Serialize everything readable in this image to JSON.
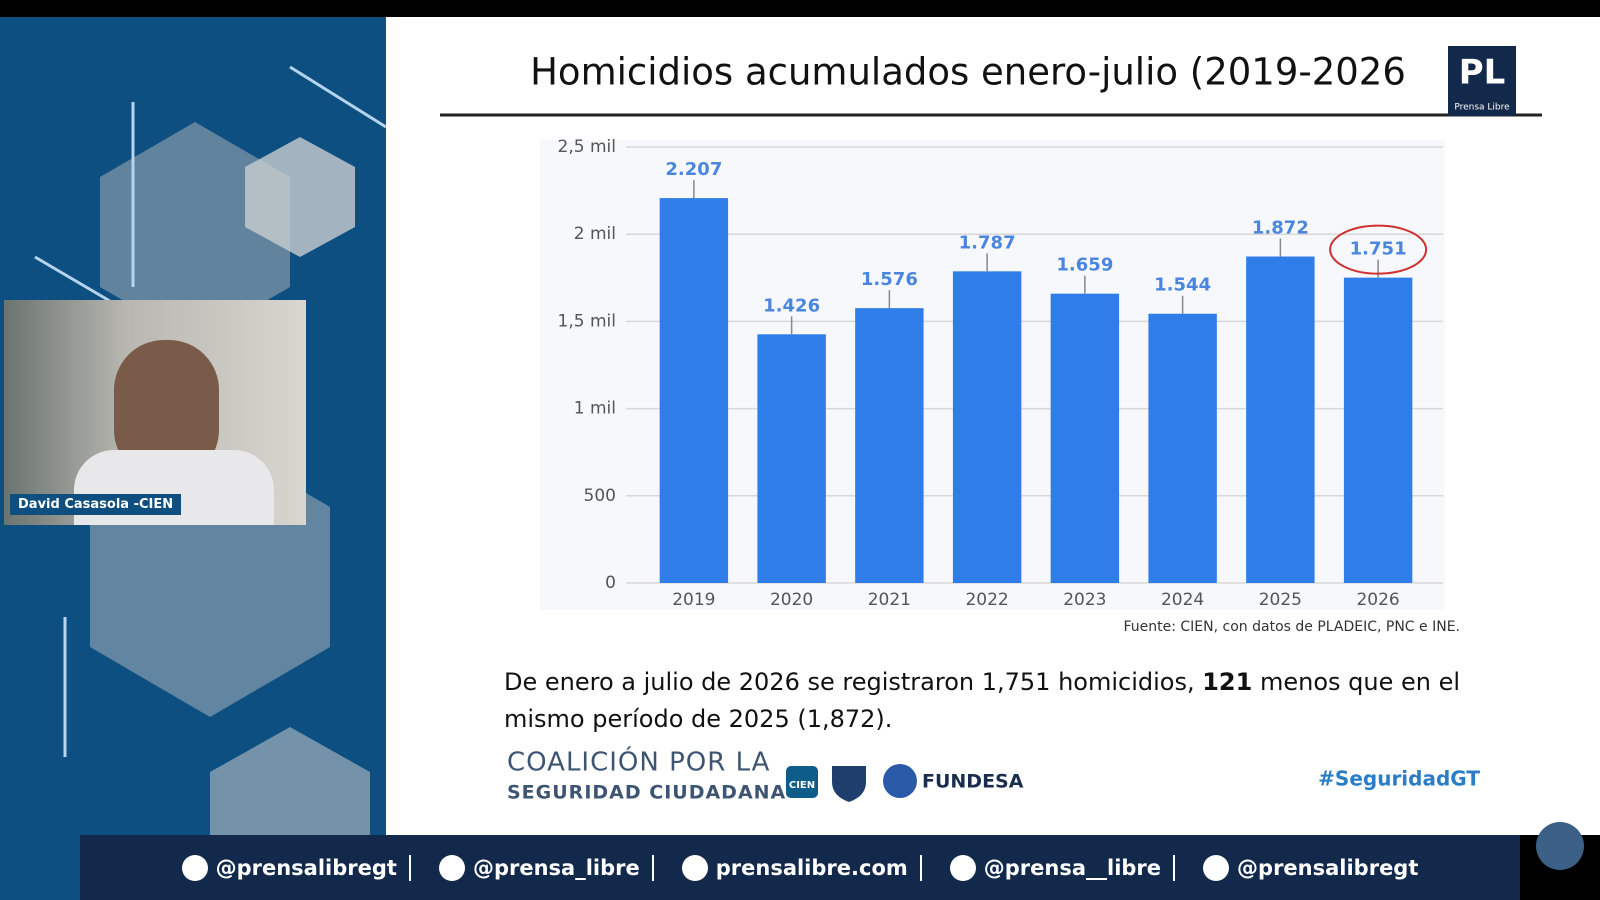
{
  "chart_data": {
    "type": "bar",
    "title": "Homicidios acumulados enero-julio (2019-2026",
    "categories": [
      "2019",
      "2020",
      "2021",
      "2022",
      "2023",
      "2024",
      "2025",
      "2026"
    ],
    "values": [
      2207,
      1426,
      1576,
      1787,
      1659,
      1544,
      1872,
      1751
    ],
    "value_labels": [
      "2.207",
      "1.426",
      "1.576",
      "1.787",
      "1.659",
      "1.544",
      "1.872",
      "1.751"
    ],
    "color": "#2f7de8",
    "label_color": "#4a86e0",
    "ylim": [
      0,
      2500
    ],
    "yticks": [
      0,
      500,
      {
        "value": 1000,
        "label": "1 mil"
      },
      {
        "value": 1500,
        "label": "1,5 mil"
      },
      {
        "value": 2000,
        "label": "2 mil"
      },
      {
        "value": 2500,
        "label": "2,5 mil"
      }
    ],
    "grid": true,
    "source": "Fuente: CIEN, con datos de PLADEIC, PNC e INE."
  },
  "speaker": {
    "name": "David Casasola -CIEN"
  },
  "summary": {
    "parts": [
      "De enero a julio de 2026 se registraron 1,751 homicidios,",
      "121",
      "menos que en el mismo período de 2025 (1,872)."
    ]
  },
  "logos": {
    "coalition_line1": "COALICIÓN POR LA",
    "coalition_line2": "SEGURIDAD CIUDADANA",
    "cien": "CIEN",
    "fundesa": "FUNDESA",
    "hashtag": "#SeguridadGT"
  },
  "brand": {
    "logo": "PL",
    "tagline": "Prensa Libre"
  },
  "social": [
    "@prensalibregt",
    "@prensa_libre",
    "prensalibre.com",
    "@prensa__libre",
    "@prensalibregt"
  ]
}
